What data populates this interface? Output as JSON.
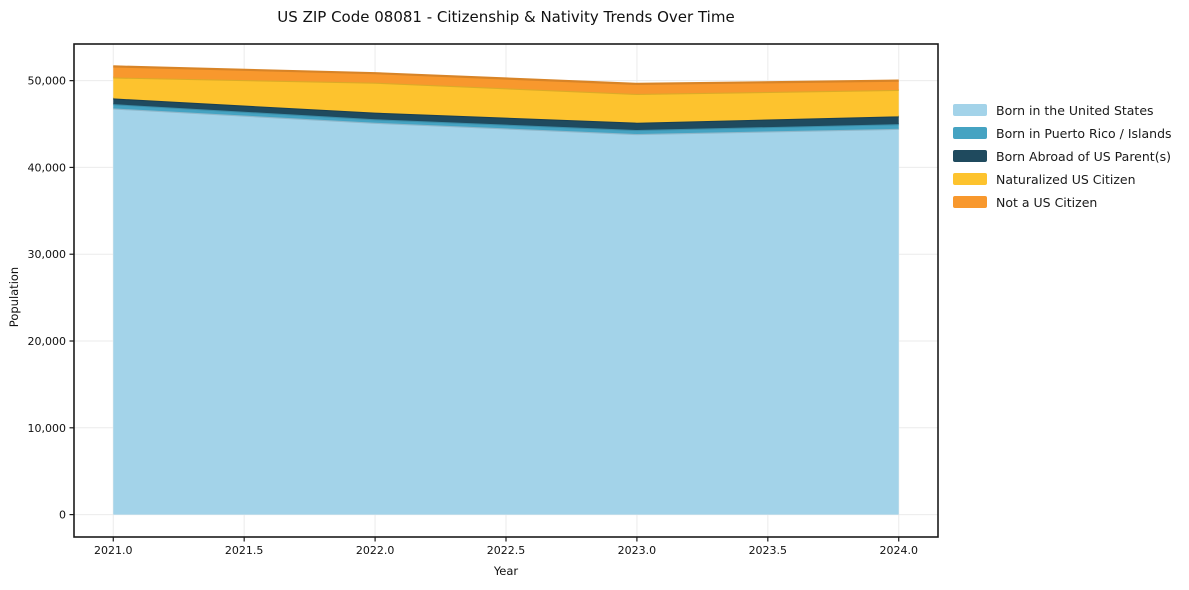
{
  "chart_data": {
    "type": "area",
    "stacked": true,
    "title": "US ZIP Code 08081 - Citizenship & Nativity Trends Over Time",
    "xlabel": "Year",
    "ylabel": "Population",
    "x": [
      2021,
      2022,
      2023,
      2024
    ],
    "series": [
      {
        "name": "Born in the United States",
        "color": "#A3D3E9",
        "values": [
          46800,
          45150,
          43850,
          44450
        ]
      },
      {
        "name": "Born in Puerto Rico / Islands",
        "color": "#45A3C2",
        "values": [
          490,
          400,
          460,
          540
        ]
      },
      {
        "name": "Born Abroad of US Parent(s)",
        "color": "#1F4A5E",
        "values": [
          660,
          760,
          845,
          900
        ]
      },
      {
        "name": "Naturalized US Citizen",
        "color": "#FDC32E",
        "values": [
          2420,
          3460,
          3320,
          3040
        ]
      },
      {
        "name": "Not a US Citizen",
        "color": "#F8982D",
        "values": [
          1270,
          1090,
          1150,
          1070
        ]
      }
    ],
    "xlim": [
      2020.85,
      2024.15
    ],
    "ylim": [
      -2582,
      54222
    ],
    "xticks": [
      {
        "v": 2021.0,
        "label": "2021.0"
      },
      {
        "v": 2021.5,
        "label": "2021.5"
      },
      {
        "v": 2022.0,
        "label": "2022.0"
      },
      {
        "v": 2022.5,
        "label": "2022.5"
      },
      {
        "v": 2023.0,
        "label": "2023.0"
      },
      {
        "v": 2023.5,
        "label": "2023.5"
      },
      {
        "v": 2024.0,
        "label": "2024.0"
      }
    ],
    "yticks": [
      {
        "v": 0,
        "label": "0"
      },
      {
        "v": 10000,
        "label": "10,000"
      },
      {
        "v": 20000,
        "label": "20,000"
      },
      {
        "v": 30000,
        "label": "30,000"
      },
      {
        "v": 40000,
        "label": "40,000"
      },
      {
        "v": 50000,
        "label": "50,000"
      }
    ],
    "grid": true,
    "legend_position": "right-outside"
  }
}
